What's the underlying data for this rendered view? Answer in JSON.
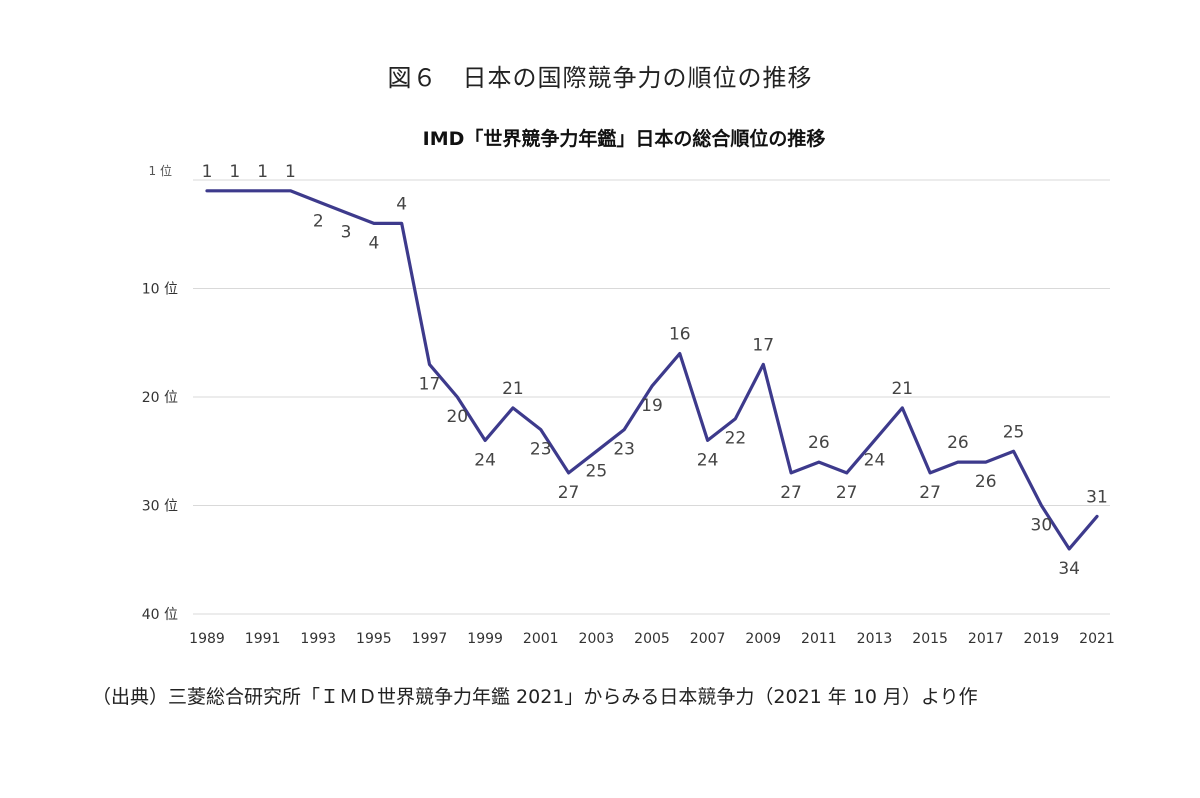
{
  "figure_title": "図６　日本の国際競争力の順位の推移",
  "source_note": "（出典）三菱総合研究所「ＩＭＤ世界競争力年鑑 2021」からみる日本競争力（2021 年 10 月）より作",
  "colors": {
    "line": "#3d3a8c",
    "grid": "#d9d9d9"
  },
  "chart_data": {
    "type": "line",
    "title": "IMD「世界競争力年鑑」日本の総合順位の推移",
    "xlabel": "",
    "ylabel": "",
    "y_inverted": true,
    "ylim": [
      0,
      40
    ],
    "grid": true,
    "y_ticks": [
      {
        "value": 0,
        "label": "1 位"
      },
      {
        "value": 10,
        "label": "10 位"
      },
      {
        "value": 20,
        "label": "20 位"
      },
      {
        "value": 30,
        "label": "30 位"
      },
      {
        "value": 40,
        "label": "40 位"
      }
    ],
    "x_tick_labels": [
      "1989",
      "1991",
      "1993",
      "1995",
      "1997",
      "1999",
      "2001",
      "2003",
      "2005",
      "2007",
      "2009",
      "2011",
      "2013",
      "2015",
      "2017",
      "2019",
      "2021"
    ],
    "x": [
      1989,
      1990,
      1991,
      1992,
      1993,
      1994,
      1995,
      1996,
      1997,
      1998,
      1999,
      2000,
      2001,
      2002,
      2003,
      2004,
      2005,
      2006,
      2007,
      2008,
      2009,
      2010,
      2011,
      2012,
      2013,
      2014,
      2015,
      2016,
      2017,
      2018,
      2019,
      2020,
      2021
    ],
    "series": [
      {
        "values": [
          1,
          1,
          1,
          1,
          2,
          3,
          4,
          4,
          17,
          20,
          24,
          21,
          23,
          27,
          25,
          23,
          19,
          16,
          24,
          22,
          17,
          27,
          26,
          27,
          24,
          21,
          27,
          26,
          26,
          25,
          30,
          34,
          31
        ]
      }
    ]
  }
}
